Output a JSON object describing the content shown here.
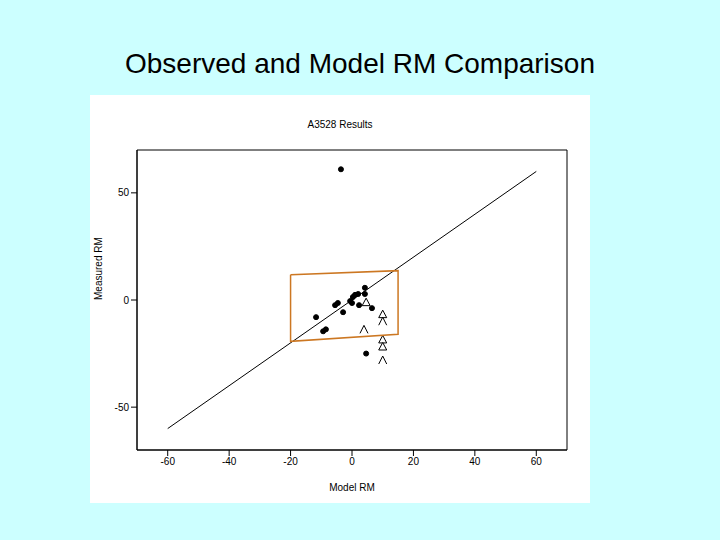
{
  "title": "Observed and Model RM Comparison",
  "chart_data": {
    "type": "scatter",
    "title": "A3528 Results",
    "x_label": "Model RM",
    "y_label": "Measured RM",
    "xlim": [
      -70,
      70
    ],
    "ylim": [
      -70,
      70
    ],
    "xticks": [
      -60,
      -40,
      -20,
      0,
      20,
      40,
      60
    ],
    "yticks": [
      -50,
      0,
      50
    ],
    "series": [
      {
        "type": "scatter",
        "marker": "circle",
        "color": "#000000",
        "x": [
          -3.6,
          -11.7,
          -8.5,
          -9.4,
          -5.5,
          -4.6,
          -2.9,
          -0.6,
          0.3,
          1,
          2,
          0,
          2.3,
          4.2,
          4.2,
          6.5,
          4.6
        ],
        "values": [
          61,
          -8,
          -13.7,
          -14.6,
          -2.4,
          -1.4,
          -5.7,
          -0.5,
          1.4,
          2.4,
          2.8,
          -1.4,
          -2.4,
          5.7,
          2.8,
          -3.8,
          -25
        ]
      },
      {
        "type": "scatter",
        "marker": "triangle",
        "color": "#000000",
        "x": [
          4.6,
          10,
          10,
          10
        ],
        "values": [
          -1,
          -6.6,
          -18.4,
          -21.7
        ]
      },
      {
        "type": "scatter",
        "marker": "caret",
        "color": "#000000",
        "x": [
          10,
          3.9,
          10
        ],
        "values": [
          -9.9,
          -13.7,
          -28
        ]
      },
      {
        "type": "line",
        "line_style": "solid",
        "color": "#000000",
        "x": [
          -60,
          60
        ],
        "values": [
          -60,
          60
        ]
      },
      {
        "type": "polygon",
        "line_style": "solid",
        "color": "#cc7722",
        "x": [
          -20,
          15,
          15,
          -20
        ],
        "values": [
          11.8,
          13.7,
          -16,
          -19.3
        ]
      }
    ]
  }
}
